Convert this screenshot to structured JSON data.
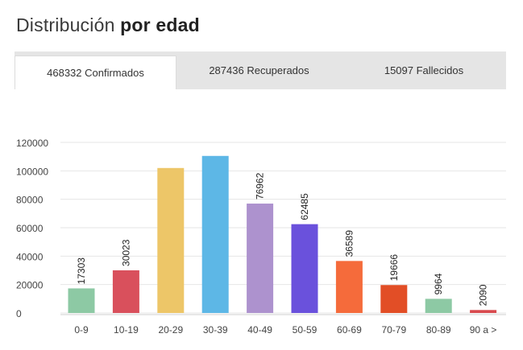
{
  "heading": {
    "prefix": "Distribución",
    "bold": "por edad"
  },
  "tabs": [
    {
      "label": "468332 Confirmados"
    },
    {
      "label": "287436 Recuperados"
    },
    {
      "label": "15097 Fallecidos"
    }
  ],
  "chart_data": {
    "type": "bar",
    "categories": [
      "0-9",
      "10-19",
      "20-29",
      "30-39",
      "40-49",
      "50-59",
      "60-69",
      "70-79",
      "80-89",
      "90 a >"
    ],
    "values": [
      17303,
      30023,
      102000,
      110500,
      76962,
      62485,
      36589,
      19666,
      9964,
      2090
    ],
    "data_labels": [
      "17303",
      "30023",
      "",
      "",
      "76962",
      "62485",
      "36589",
      "19666",
      "9964",
      "2090"
    ],
    "colors": [
      "#8dc9a4",
      "#d9505c",
      "#edc668",
      "#5db7e6",
      "#ad92ce",
      "#6a51dc",
      "#f56b3b",
      "#e24e26",
      "#8dc9a4",
      "#d84a4e"
    ],
    "yticks": [
      "0",
      "20000",
      "40000",
      "60000",
      "80000",
      "100000",
      "120000"
    ],
    "ylim": [
      0,
      120000
    ],
    "grid": true,
    "title": "",
    "xlabel": "",
    "ylabel": ""
  }
}
